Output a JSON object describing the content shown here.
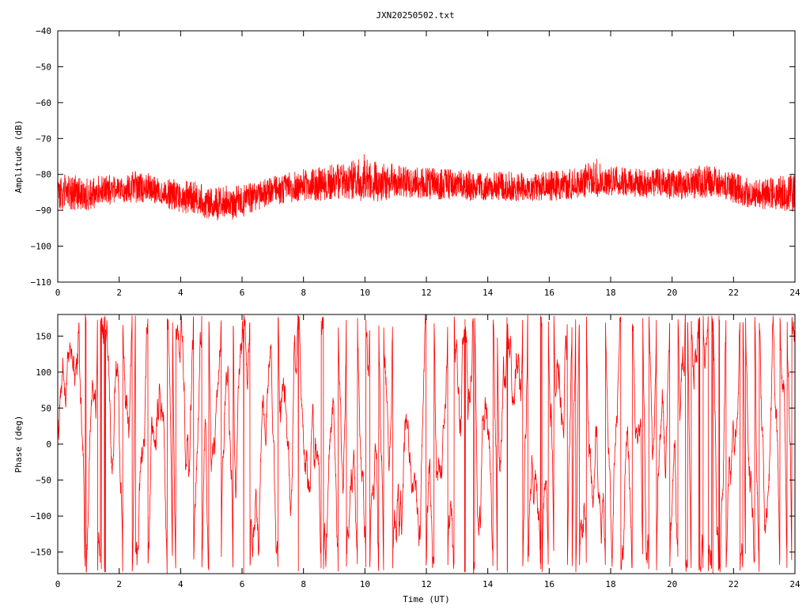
{
  "title": "JXN20250502.txt",
  "colors": {
    "series": "#ff0000",
    "frame": "#000000",
    "background": "#ffffff"
  },
  "chart_data": [
    {
      "type": "line",
      "name": "amplitude-panel",
      "xlabel": "",
      "ylabel": "Amplitude (dB)",
      "xlim": [
        0,
        24
      ],
      "ylim": [
        -110,
        -40
      ],
      "xticks": [
        0,
        2,
        4,
        6,
        8,
        10,
        12,
        14,
        16,
        18,
        20,
        22,
        24
      ],
      "yticks": [
        -40,
        -50,
        -60,
        -70,
        -80,
        -90,
        -100,
        -110
      ],
      "grid": false,
      "envelope": {
        "x": [
          0,
          0.5,
          1,
          1.5,
          2,
          2.5,
          3,
          3.5,
          4,
          4.5,
          5,
          5.5,
          6,
          6.5,
          7,
          7.5,
          8,
          8.5,
          9,
          9.5,
          10,
          10.5,
          11,
          11.5,
          12,
          12.5,
          13,
          13.5,
          14,
          14.5,
          15,
          15.5,
          16,
          16.5,
          17,
          17.5,
          18,
          18.5,
          19,
          19.5,
          20,
          20.5,
          21,
          21.5,
          22,
          22.5,
          23,
          23.5,
          24
        ],
        "y_mean": [
          -85,
          -85.5,
          -86,
          -85,
          -84,
          -83.5,
          -84,
          -85.5,
          -86,
          -87,
          -89,
          -88.5,
          -87.5,
          -86,
          -85,
          -84,
          -83.5,
          -83,
          -82.5,
          -82.5,
          -83,
          -82.5,
          -82,
          -82.5,
          -83,
          -83,
          -83,
          -83.5,
          -84,
          -84,
          -84,
          -84,
          -83.5,
          -83,
          -83,
          -82.5,
          -82,
          -82,
          -82.5,
          -82.5,
          -83,
          -83,
          -82.5,
          -82.5,
          -84,
          -85.5,
          -86,
          -86,
          -86.5
        ],
        "y_min": [
          -90,
          -90,
          -90,
          -89,
          -88,
          -88,
          -88,
          -89.5,
          -91,
          -91,
          -93,
          -93,
          -92,
          -90,
          -89,
          -88,
          -87.5,
          -87.5,
          -87,
          -87,
          -88,
          -87.5,
          -86.5,
          -86.5,
          -87,
          -87,
          -87,
          -87.5,
          -87.5,
          -87.5,
          -87.5,
          -88,
          -87.5,
          -87,
          -87,
          -86.5,
          -86,
          -86,
          -86.5,
          -86.5,
          -87,
          -87,
          -86.5,
          -86.5,
          -88,
          -89.5,
          -90,
          -90,
          -91
        ],
        "y_max": [
          -80,
          -80,
          -81,
          -80,
          -80,
          -79,
          -79.5,
          -81,
          -81.5,
          -82,
          -84,
          -83,
          -83,
          -82,
          -80.5,
          -79.5,
          -78.5,
          -78,
          -77,
          -76.5,
          -74,
          -77,
          -77,
          -78,
          -78,
          -78.5,
          -78.5,
          -79,
          -79.5,
          -79,
          -79.5,
          -79.5,
          -79,
          -78.5,
          -78,
          -75.5,
          -77.5,
          -78,
          -78.5,
          -78,
          -78.5,
          -78.5,
          -77,
          -78,
          -79.5,
          -81,
          -81,
          -80,
          -80
        ]
      }
    },
    {
      "type": "line",
      "name": "phase-panel",
      "xlabel": "Time (UT)",
      "ylabel": "Phase (deg)",
      "xlim": [
        0,
        24
      ],
      "ylim": [
        -180,
        180
      ],
      "xticks": [
        0,
        2,
        4,
        6,
        8,
        10,
        12,
        14,
        16,
        18,
        20,
        22,
        24
      ],
      "yticks": [
        150,
        100,
        50,
        0,
        -50,
        -100,
        -150
      ],
      "grid": false,
      "phase_wrapped_range": [
        -180,
        180
      ]
    }
  ]
}
